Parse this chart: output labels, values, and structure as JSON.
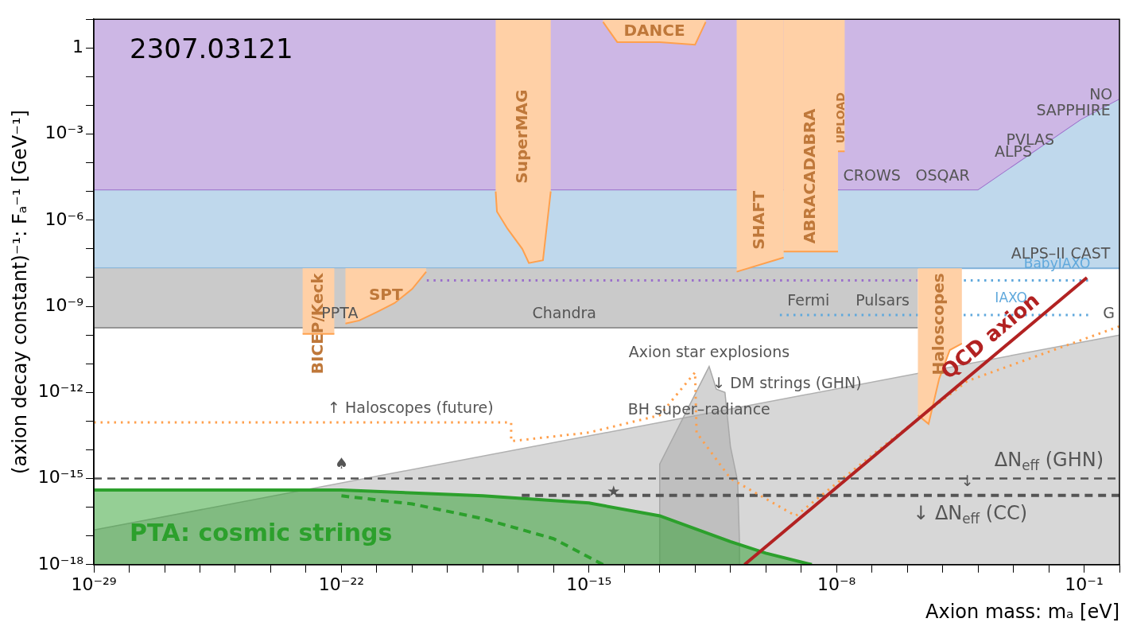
{
  "chart_data": {
    "type": "area",
    "xlabel": "Axion mass: mₐ [eV]",
    "ylabel": "(axion decay constant)⁻¹: Fₐ⁻¹ [GeV⁻¹]",
    "log": "xy",
    "grid": false,
    "xlim": [
      1e-29,
      1
    ],
    "ylim": [
      1e-18,
      10
    ],
    "xticks": [
      {
        "value": 1e-29,
        "label": "10⁻²⁹"
      },
      {
        "value": 1e-28,
        "label": null
      },
      {
        "value": 1e-27,
        "label": null
      },
      {
        "value": 1e-26,
        "label": null
      },
      {
        "value": 1e-25,
        "label": null
      },
      {
        "value": 1e-24,
        "label": null
      },
      {
        "value": 1e-23,
        "label": null
      },
      {
        "value": 1e-22,
        "label": "10⁻²²"
      },
      {
        "value": 1e-21,
        "label": null
      },
      {
        "value": 1e-20,
        "label": null
      },
      {
        "value": 1e-19,
        "label": null
      },
      {
        "value": 1e-18,
        "label": null
      },
      {
        "value": 1e-17,
        "label": null
      },
      {
        "value": 1e-16,
        "label": null
      },
      {
        "value": 1e-15,
        "label": "10⁻¹⁵"
      },
      {
        "value": 1e-14,
        "label": null
      },
      {
        "value": 1e-13,
        "label": null
      },
      {
        "value": 1e-12,
        "label": null
      },
      {
        "value": 1e-11,
        "label": null
      },
      {
        "value": 1e-10,
        "label": null
      },
      {
        "value": 1e-09,
        "label": null
      },
      {
        "value": 1e-08,
        "label": "10⁻⁸"
      },
      {
        "value": 1e-07,
        "label": null
      },
      {
        "value": 1e-06,
        "label": null
      },
      {
        "value": 1e-05,
        "label": null
      },
      {
        "value": 0.0001,
        "label": null
      },
      {
        "value": 0.001,
        "label": null
      },
      {
        "value": 0.01,
        "label": null
      },
      {
        "value": 0.1,
        "label": "10⁻¹"
      },
      {
        "value": 1,
        "label": null
      }
    ],
    "yticks": [
      {
        "value": 1e-18,
        "label": "10⁻¹⁸"
      },
      {
        "value": 1e-17,
        "label": null
      },
      {
        "value": 1e-16,
        "label": null
      },
      {
        "value": 1e-15,
        "label": "10⁻¹⁵"
      },
      {
        "value": 1e-14,
        "label": null
      },
      {
        "value": 1e-13,
        "label": null
      },
      {
        "value": 1e-12,
        "label": "10⁻¹²"
      },
      {
        "value": 1e-11,
        "label": null
      },
      {
        "value": 1e-10,
        "label": null
      },
      {
        "value": 1e-09,
        "label": "10⁻⁹"
      },
      {
        "value": 1e-08,
        "label": null
      },
      {
        "value": 1e-07,
        "label": null
      },
      {
        "value": 1e-06,
        "label": "10⁻⁶"
      },
      {
        "value": 1e-05,
        "label": null
      },
      {
        "value": 0.0001,
        "label": null
      },
      {
        "value": 0.001,
        "label": "10⁻³"
      },
      {
        "value": 0.01,
        "label": null
      },
      {
        "value": 0.1,
        "label": null
      },
      {
        "value": 1,
        "label": "1"
      },
      {
        "value": 10,
        "label": null
      }
    ],
    "series": [
      {
        "type": "line",
        "color": "#9b6fcb",
        "x": [
          1e-29,
          0.0001,
          0.085,
          1
        ],
        "values": [
          1.1e-05,
          1.1e-05,
          0.0032,
          0.016
        ],
        "lower": [
          1.1e-05,
          1.1e-05,
          0.0032,
          0.016
        ],
        "upper": [
          10,
          10,
          10,
          10
        ]
      },
      {
        "type": "line",
        "color": "#7fb0d8",
        "x": [
          1e-29,
          0.0001,
          0.085,
          1
        ],
        "values": [
          2.1e-08,
          2.1e-08,
          2.1e-08,
          2.1e-08
        ],
        "lower": [
          2.1e-08,
          2.1e-08,
          2.1e-08,
          2.1e-08
        ],
        "upper": [
          1.1e-05,
          1.1e-05,
          0.0032,
          0.016
        ]
      },
      {
        "type": "line",
        "color": "#959595",
        "x": [
          1e-29,
          2e-06
        ],
        "values": [
          1.8e-10,
          1.8e-10
        ],
        "lower": [
          1.8e-10,
          1.8e-10
        ],
        "upper": [
          2.1e-08,
          2.1e-08
        ]
      },
      {
        "color": "#b0b0b0",
        "x": [
          1e-29,
          1
        ],
        "values": [
          1.6e-17,
          1e-10
        ]
      },
      {
        "color": "#a8a8a8",
        "x": [
          1e-13,
          1e-13,
          2.5e-12,
          4e-12,
          7e-12,
          1e-11,
          1.6e-11,
          1.8e-11,
          1.8e-11
        ],
        "values": [
          1e-18,
          3.2e-15,
          8e-12,
          1.3e-12,
          1e-12,
          1.3e-14,
          8e-16,
          6.3e-18,
          1e-18
        ]
      },
      {
        "name": "PTA: cosmic strings",
        "color": "#2ca02c",
        "x": [
          1e-29,
          1e-22,
          1e-18,
          1e-15,
          1e-13,
          1e-11,
          1e-10,
          2e-09
        ],
        "values": [
          4e-16,
          4e-16,
          2.5e-16,
          1.4e-16,
          5e-17,
          6.3e-18,
          2.5e-18,
          1e-18
        ]
      },
      {
        "type": "line",
        "color": "#2ca02c",
        "line_style": "dashed",
        "x": [
          1e-22,
          1e-20,
          1e-18,
          1e-16,
          2.5e-15
        ],
        "values": [
          2.5e-16,
          1.3e-16,
          4e-17,
          8e-18,
          1e-18
        ]
      },
      {
        "type": "line",
        "name": "↓ ΔN$_{eff}$ (CC)",
        "color": "#555555",
        "line_style": "dashed",
        "x": [
          1.26e-17,
          1
        ],
        "values": [
          2.6e-16,
          2.6e-16
        ]
      },
      {
        "type": "line",
        "color": "#9b6fcb",
        "line_style": "dotted",
        "x": [
          2.6e-20,
          2e-06
        ],
        "values": [
          8e-09,
          8e-09
        ]
      },
      {
        "type": "line",
        "name": "IAXO",
        "color": "#5fa8dc",
        "line_style": "dotted",
        "x": [
          2.5e-10,
          0.13
        ],
        "values": [
          5e-10,
          5e-10
        ]
      },
      {
        "type": "line",
        "name": "BabyIAXO",
        "color": "#5fa8dc",
        "line_style": "dotted",
        "x": [
          4e-05,
          0.13
        ],
        "values": [
          8e-09,
          8e-09
        ]
      },
      {
        "type": "line",
        "name": "SuperMAG",
        "color": "#ffa04d",
        "x": [
          2.3e-18,
          2.5e-18,
          5e-18,
          1.3e-17,
          2e-17,
          5e-17,
          8.3e-17
        ],
        "values": [
          1e-05,
          2e-06,
          5e-07,
          1e-07,
          3.2e-08,
          4e-08,
          1e-05
        ],
        "lower": [
          1e-05,
          2e-06,
          5e-07,
          1e-07,
          3.2e-08,
          4e-08,
          1e-05
        ],
        "upper": [
          10,
          10,
          10,
          10,
          10,
          10,
          10
        ]
      },
      {
        "type": "line",
        "name": "SHAFT",
        "color": "#ffa04d",
        "x": [
          1.5e-11,
          3.2e-10
        ],
        "values": [
          1.6e-08,
          5e-08
        ],
        "lower": [
          1.6e-08,
          5e-08
        ],
        "upper": [
          10,
          10
        ]
      },
      {
        "type": "line",
        "name": "ABRACADABRA",
        "color": "#ffa04d",
        "x": [
          3.2e-10,
          1.1e-08
        ],
        "values": [
          8e-08,
          8e-08
        ],
        "lower": [
          8e-08,
          8e-08
        ],
        "upper": [
          10,
          10
        ]
      },
      {
        "type": "line",
        "name": "UPLOAD",
        "color": "#ffa04d",
        "x": [
          1.1e-08,
          1.7e-08
        ],
        "values": [
          0.00025,
          0.00025
        ],
        "lower": [
          0.00025,
          0.00025
        ],
        "upper": [
          10,
          10
        ]
      },
      {
        "type": "line",
        "name": "DANCE",
        "color": "#ffa04d",
        "x": [
          2.5e-15,
          6.3e-15,
          1e-13,
          1e-12,
          2e-12
        ],
        "values": [
          8,
          1.6,
          1.6,
          1.3,
          8
        ],
        "lower": [
          8,
          1.6,
          1.6,
          1.3,
          8
        ],
        "upper": [
          10,
          10,
          10,
          10,
          10
        ]
      },
      {
        "type": "line",
        "name": "BICEP/Keck",
        "color": "#ffa04d",
        "x": [
          8e-24,
          6.3e-23
        ],
        "values": [
          1.1e-10,
          1.1e-10
        ],
        "lower": [
          1.1e-10,
          1.1e-10
        ],
        "upper": [
          2.1e-08,
          2.1e-08
        ]
      },
      {
        "type": "line",
        "name": "SPT",
        "color": "#ffa04d",
        "x": [
          1.3e-22,
          3.2e-22,
          1e-21,
          3.2e-21,
          1e-20,
          2.5e-20
        ],
        "values": [
          2.5e-10,
          3.2e-10,
          6.3e-10,
          1.3e-09,
          4e-09,
          1.6e-08
        ],
        "lower": [
          2.5e-10,
          3.2e-10,
          6.3e-10,
          1.3e-09,
          4e-09,
          1.6e-08
        ],
        "upper": [
          2.1e-08,
          2.1e-08,
          2.1e-08,
          2.1e-08,
          2.1e-08,
          2.1e-08
        ]
      },
      {
        "type": "line",
        "name": "Haloscopes",
        "color": "#ffa04d",
        "x": [
          2e-06,
          4e-06,
          8e-06,
          1.6e-05,
          3.5e-05
        ],
        "values": [
          1.6e-13,
          8e-14,
          3e-12,
          3e-11,
          5e-11
        ],
        "lower": [
          1.6e-13,
          8e-14,
          3e-12,
          3e-11,
          5e-11
        ],
        "upper": [
          2.1e-08,
          2.1e-08,
          2.1e-08,
          2.1e-08,
          2.1e-08
        ]
      },
      {
        "type": "line",
        "color": "#ffa04d",
        "line_style": "dotted",
        "x": [
          1e-29,
          6.3e-18,
          6.3e-18,
          1e-15,
          1e-13,
          1e-12,
          1.1e-12,
          1e-11,
          7e-10,
          4e-07,
          5e-05,
          1
        ],
        "values": [
          9e-14,
          9e-14,
          2e-14,
          4e-14,
          1.6e-13,
          5e-12,
          4e-14,
          1e-15,
          5e-17,
          2.5e-14,
          2.5e-12,
          2e-10
        ]
      },
      {
        "type": "line",
        "name": "QCD axion",
        "color": "#b22222",
        "x": [
          2.5e-11,
          0.12
        ],
        "values": [
          1e-18,
          1e-08
        ]
      }
    ],
    "ref_lines": [
      {
        "axis": "y",
        "value": 1e-15,
        "label": "ΔN$_{eff}$ (GHN)",
        "color": "#555555",
        "line_style": "dashed"
      }
    ],
    "annotations": [
      "2307.03121",
      {
        "text": "↑ Haloscopes (future)",
        "x": 9e-21,
        "y": 9e-14
      },
      {
        "text": "♠",
        "x": 1e-22,
        "y": 1e-15
      },
      {
        "text": "★",
        "x": 5e-15,
        "y": 1.1e-16
      },
      {
        "text": "↓",
        "x": 5e-05,
        "y": 2.6e-16
      },
      {
        "text": "↓ DM strings (GHN)",
        "x": 4e-10,
        "y": 6.3e-13
      },
      {
        "text": "BH super–radiance",
        "x": 1.3e-12,
        "y": 8e-14
      },
      {
        "text": "Chandra",
        "x": 2e-16,
        "y": 1.8e-10
      },
      {
        "text": "Fermi",
        "x": 1.6e-09,
        "y": 5e-10
      },
      {
        "text": "Pulsars",
        "x": 2e-07,
        "y": 5e-10
      },
      {
        "text": "Axion star explosions",
        "x": 2.5e-12,
        "y": 8e-12
      },
      {
        "text": "PPTA",
        "x": 9e-23,
        "y": 1.8e-10
      },
      {
        "text": "CROWS",
        "x": 1e-07,
        "y": 1.1e-05
      },
      {
        "text": "OSQAR",
        "x": 1e-05,
        "y": 1.1e-05
      },
      {
        "text": "ALPS",
        "x": 0.001,
        "y": 7.6e-05
      },
      {
        "text": "PVLAS",
        "x": 0.003,
        "y": 0.00019
      },
      {
        "text": "ALPS–II",
        "x": 0.005,
        "y": 2.1e-08
      },
      {
        "text": "SAPPHIRE",
        "x": 0.05,
        "y": 0.0021
      },
      {
        "text": "NO",
        "x": 0.3,
        "y": 0.0074
      },
      {
        "text": "CAST",
        "x": 0.15,
        "y": 2.1e-08
      },
      {
        "text": "G",
        "x": 0.5,
        "y": 1.8e-10
      }
    ]
  }
}
